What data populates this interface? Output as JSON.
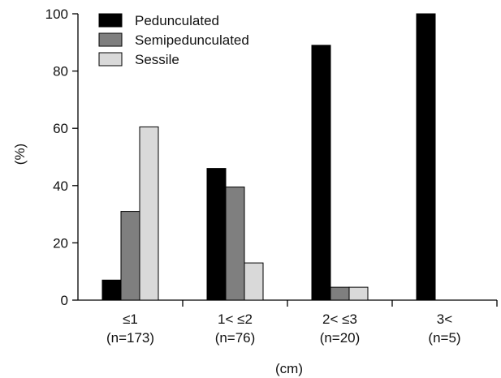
{
  "chart_data": {
    "type": "bar",
    "title": "",
    "ylabel": "(%)",
    "xlabel": "(cm)",
    "ylim": [
      0,
      100
    ],
    "yticks": [
      "0",
      "20",
      "40",
      "60",
      "80",
      "100"
    ],
    "categories": [
      "≤1",
      "1< ≤2",
      "2< ≤3",
      "3<"
    ],
    "category_counts": [
      "(n=173)",
      "(n=76)",
      "(n=20)",
      "(n=5)"
    ],
    "series": [
      {
        "name": "Pedunculated",
        "values": [
          7,
          46,
          89,
          100
        ],
        "color": "#000000"
      },
      {
        "name": "Semipedunculated",
        "values": [
          31,
          39.5,
          4.5,
          0
        ],
        "color": "#7f7f7f"
      },
      {
        "name": "Sessile",
        "values": [
          60.5,
          13,
          4.5,
          0
        ],
        "color": "#d9d9d9"
      }
    ],
    "legend_position": "top-left",
    "grid": false
  }
}
